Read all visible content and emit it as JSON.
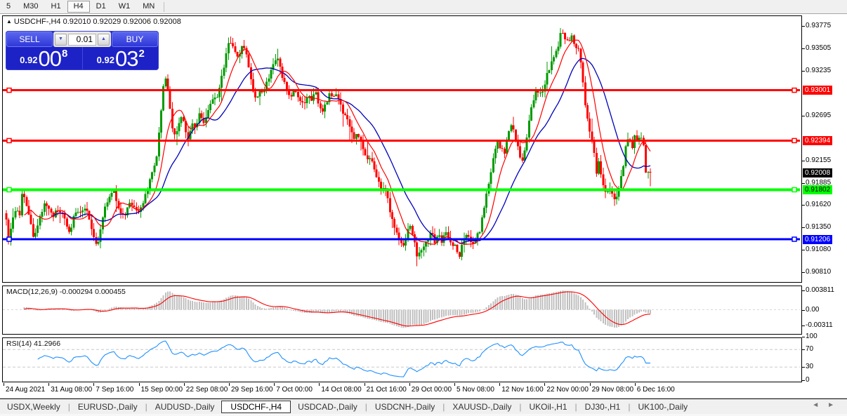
{
  "toolbar": {
    "timeframes": [
      "5",
      "M30",
      "H1",
      "H4",
      "D1",
      "W1",
      "MN"
    ],
    "active_timeframe": "H4"
  },
  "chart": {
    "collapse_arrow": "▲",
    "title": "USDCHF-,H4",
    "ohlc_text": "0.92010 0.92029 0.92006 0.92008"
  },
  "trade_panel": {
    "sell_label": "SELL",
    "buy_label": "BUY",
    "lot": "0.01",
    "down_arrow": "▼",
    "up_arrow": "▲",
    "sell_prefix": "0.92",
    "sell_big": "00",
    "sell_sup": "8",
    "buy_prefix": "0.92",
    "buy_big": "03",
    "buy_sup": "2"
  },
  "chart_data": {
    "type": "candlestick",
    "symbol": "USDCHF-,H4",
    "ylim": [
      0.90709,
      0.93893
    ],
    "y_axis_ticks": [
      "0.93775",
      "0.93505",
      "0.93235",
      "0.92695",
      "0.92155",
      "0.91885",
      "0.91620",
      "0.91350",
      "0.91080",
      "0.90810"
    ],
    "x_axis_ticks": [
      "24 Aug 2021",
      "31 Aug 08:00",
      "7 Sep 16:00",
      "15 Sep 00:00",
      "22 Sep 08:00",
      "29 Sep 16:00",
      "7 Oct 00:00",
      "14 Oct 08:00",
      "21 Oct 16:00",
      "29 Oct 00:00",
      "5 Nov 08:00",
      "12 Nov 16:00",
      "22 Nov 00:00",
      "29 Nov 08:00",
      "6 Dec 16:00"
    ],
    "levels": [
      {
        "price": 0.93001,
        "label": "0.93001",
        "color": "#ff0000",
        "text": "#ffffff",
        "width": 3
      },
      {
        "price": 0.92394,
        "label": "0.92394",
        "color": "#ff0000",
        "text": "#ffffff",
        "width": 3
      },
      {
        "price": 0.91802,
        "label": "0.91802",
        "color": "#00ff00",
        "text": "#000000",
        "width": 4
      },
      {
        "price": 0.91206,
        "label": "0.91206",
        "color": "#0000ff",
        "text": "#ffffff",
        "width": 3
      }
    ],
    "current_price": {
      "value": 0.92008,
      "label": "0.92008",
      "badge_bg": "#000000",
      "badge_text": "#ffffff"
    },
    "colors": {
      "up": "#009b00",
      "down": "#ff0000",
      "ma_fast": "#ff0000",
      "ma_slow": "#0000bb",
      "macd_hist": "#c0c0c0",
      "macd_signal": "#ff0000",
      "rsi": "#1e90ff"
    },
    "ma_fast_period": 9,
    "ma_slow_period": 21,
    "price_path": [
      [
        4,
        0.9152
      ],
      [
        8,
        0.9118
      ],
      [
        12,
        0.9138
      ],
      [
        18,
        0.9158
      ],
      [
        24,
        0.9148
      ],
      [
        28,
        0.918
      ],
      [
        33,
        0.9165
      ],
      [
        38,
        0.9145
      ],
      [
        44,
        0.912
      ],
      [
        48,
        0.9135
      ],
      [
        54,
        0.915
      ],
      [
        60,
        0.9163
      ],
      [
        66,
        0.9155
      ],
      [
        72,
        0.9148
      ],
      [
        78,
        0.9158
      ],
      [
        84,
        0.9152
      ],
      [
        90,
        0.9138
      ],
      [
        96,
        0.9125
      ],
      [
        100,
        0.9148
      ],
      [
        106,
        0.9158
      ],
      [
        112,
        0.915
      ],
      [
        118,
        0.9162
      ],
      [
        124,
        0.914
      ],
      [
        130,
        0.912
      ],
      [
        134,
        0.911
      ],
      [
        140,
        0.9135
      ],
      [
        146,
        0.9162
      ],
      [
        152,
        0.9172
      ],
      [
        158,
        0.918
      ],
      [
        164,
        0.9162
      ],
      [
        170,
        0.915
      ],
      [
        176,
        0.9153
      ],
      [
        182,
        0.9165
      ],
      [
        188,
        0.9158
      ],
      [
        194,
        0.915
      ],
      [
        200,
        0.9165
      ],
      [
        206,
        0.918
      ],
      [
        212,
        0.92
      ],
      [
        218,
        0.9215
      ],
      [
        224,
        0.926
      ],
      [
        228,
        0.93
      ],
      [
        232,
        0.9315
      ],
      [
        236,
        0.9295
      ],
      [
        240,
        0.926
      ],
      [
        245,
        0.9245
      ],
      [
        250,
        0.9258
      ],
      [
        255,
        0.9272
      ],
      [
        260,
        0.925
      ],
      [
        265,
        0.9242
      ],
      [
        270,
        0.9262
      ],
      [
        275,
        0.9256
      ],
      [
        280,
        0.927
      ],
      [
        285,
        0.9262
      ],
      [
        290,
        0.9268
      ],
      [
        295,
        0.9282
      ],
      [
        300,
        0.9295
      ],
      [
        305,
        0.9288
      ],
      [
        310,
        0.931
      ],
      [
        315,
        0.933
      ],
      [
        320,
        0.9352
      ],
      [
        325,
        0.936
      ],
      [
        330,
        0.9345
      ],
      [
        335,
        0.9338
      ],
      [
        340,
        0.9352
      ],
      [
        345,
        0.935
      ],
      [
        350,
        0.933
      ],
      [
        355,
        0.9305
      ],
      [
        360,
        0.929
      ],
      [
        365,
        0.93
      ],
      [
        370,
        0.9295
      ],
      [
        375,
        0.931
      ],
      [
        380,
        0.9318
      ],
      [
        385,
        0.9328
      ],
      [
        390,
        0.934
      ],
      [
        395,
        0.9325
      ],
      [
        400,
        0.931
      ],
      [
        405,
        0.9298
      ],
      [
        410,
        0.929
      ],
      [
        415,
        0.9302
      ],
      [
        420,
        0.9295
      ],
      [
        425,
        0.9286
      ],
      [
        430,
        0.9282
      ],
      [
        435,
        0.9295
      ],
      [
        440,
        0.929
      ],
      [
        445,
        0.9298
      ],
      [
        450,
        0.9282
      ],
      [
        455,
        0.9275
      ],
      [
        460,
        0.9285
      ],
      [
        465,
        0.9295
      ],
      [
        470,
        0.929
      ],
      [
        475,
        0.9298
      ],
      [
        480,
        0.9288
      ],
      [
        485,
        0.9272
      ],
      [
        490,
        0.9265
      ],
      [
        495,
        0.9252
      ],
      [
        500,
        0.924
      ],
      [
        505,
        0.9248
      ],
      [
        510,
        0.9238
      ],
      [
        515,
        0.9225
      ],
      [
        520,
        0.9215
      ],
      [
        525,
        0.922
      ],
      [
        530,
        0.92
      ],
      [
        535,
        0.919
      ],
      [
        540,
        0.9178
      ],
      [
        545,
        0.9182
      ],
      [
        550,
        0.916
      ],
      [
        555,
        0.9145
      ],
      [
        560,
        0.913
      ],
      [
        565,
        0.912
      ],
      [
        570,
        0.9112
      ],
      [
        575,
        0.9128
      ],
      [
        580,
        0.9135
      ],
      [
        585,
        0.912
      ],
      [
        590,
        0.91
      ],
      [
        595,
        0.9105
      ],
      [
        600,
        0.9112
      ],
      [
        605,
        0.912
      ],
      [
        610,
        0.9128
      ],
      [
        615,
        0.9118
      ],
      [
        620,
        0.9125
      ],
      [
        625,
        0.9118
      ],
      [
        630,
        0.913
      ],
      [
        635,
        0.9122
      ],
      [
        640,
        0.9115
      ],
      [
        645,
        0.911
      ],
      [
        650,
        0.9098
      ],
      [
        655,
        0.9118
      ],
      [
        660,
        0.9125
      ],
      [
        665,
        0.9118
      ],
      [
        670,
        0.9112
      ],
      [
        675,
        0.9125
      ],
      [
        680,
        0.9132
      ],
      [
        685,
        0.9158
      ],
      [
        690,
        0.918
      ],
      [
        695,
        0.9203
      ],
      [
        700,
        0.9222
      ],
      [
        705,
        0.924
      ],
      [
        710,
        0.9228
      ],
      [
        715,
        0.9225
      ],
      [
        720,
        0.9248
      ],
      [
        725,
        0.9262
      ],
      [
        728,
        0.925
      ],
      [
        732,
        0.9235
      ],
      [
        736,
        0.9222
      ],
      [
        740,
        0.9215
      ],
      [
        745,
        0.9238
      ],
      [
        750,
        0.9268
      ],
      [
        755,
        0.9288
      ],
      [
        760,
        0.93
      ],
      [
        765,
        0.9295
      ],
      [
        770,
        0.9303
      ],
      [
        775,
        0.9318
      ],
      [
        780,
        0.933
      ],
      [
        785,
        0.934
      ],
      [
        790,
        0.935
      ],
      [
        795,
        0.9372
      ],
      [
        800,
        0.9362
      ],
      [
        805,
        0.936
      ],
      [
        810,
        0.9365
      ],
      [
        815,
        0.9355
      ],
      [
        820,
        0.935
      ],
      [
        825,
        0.932
      ],
      [
        830,
        0.9275
      ],
      [
        835,
        0.9252
      ],
      [
        840,
        0.924
      ],
      [
        845,
        0.92
      ],
      [
        848,
        0.9215
      ],
      [
        852,
        0.9195
      ],
      [
        856,
        0.9185
      ],
      [
        860,
        0.9175
      ],
      [
        864,
        0.9185
      ],
      [
        868,
        0.9172
      ],
      [
        872,
        0.9168
      ],
      [
        876,
        0.918
      ],
      [
        880,
        0.9192
      ],
      [
        884,
        0.921
      ],
      [
        888,
        0.924
      ],
      [
        892,
        0.9245
      ],
      [
        896,
        0.923
      ],
      [
        900,
        0.9246
      ],
      [
        904,
        0.9235
      ],
      [
        908,
        0.9248
      ],
      [
        912,
        0.9238
      ],
      [
        916,
        0.9195
      ],
      [
        920,
        0.9203
      ],
      [
        924,
        0.92008
      ]
    ],
    "macd": {
      "label_full": "MACD(12,26,9) -0.000294 0.000455",
      "params": [
        12,
        26,
        9
      ],
      "value_main": -0.000294,
      "value_signal": 0.000455,
      "axis_ticks": [
        {
          "v": 0.003811,
          "label": "0.003811"
        },
        {
          "v": 0,
          "label": "0.00"
        },
        {
          "v": -0.00311,
          "label": "-0.00311"
        }
      ]
    },
    "rsi": {
      "label_full": "RSI(14) 41.2966",
      "period": 14,
      "value": 41.2966,
      "axis_ticks": [
        {
          "v": 100,
          "label": "100"
        },
        {
          "v": 70,
          "label": "70"
        },
        {
          "v": 30,
          "label": "30"
        },
        {
          "v": 0,
          "label": "0"
        }
      ],
      "levels": [
        70,
        30
      ]
    }
  },
  "tabs": {
    "items": [
      "USDX,Weekly",
      "EURUSD-,Daily",
      "AUDUSD-,Daily",
      "USDCHF-,H4",
      "USDCAD-,Daily",
      "USDCNH-,Daily",
      "XAUUSD-,Daily",
      "UKOil-,H1",
      "DJ30-,H1",
      "UK100-,Daily"
    ],
    "active": "USDCHF-,H4",
    "scroll_left": "◄",
    "scroll_right": "►"
  }
}
